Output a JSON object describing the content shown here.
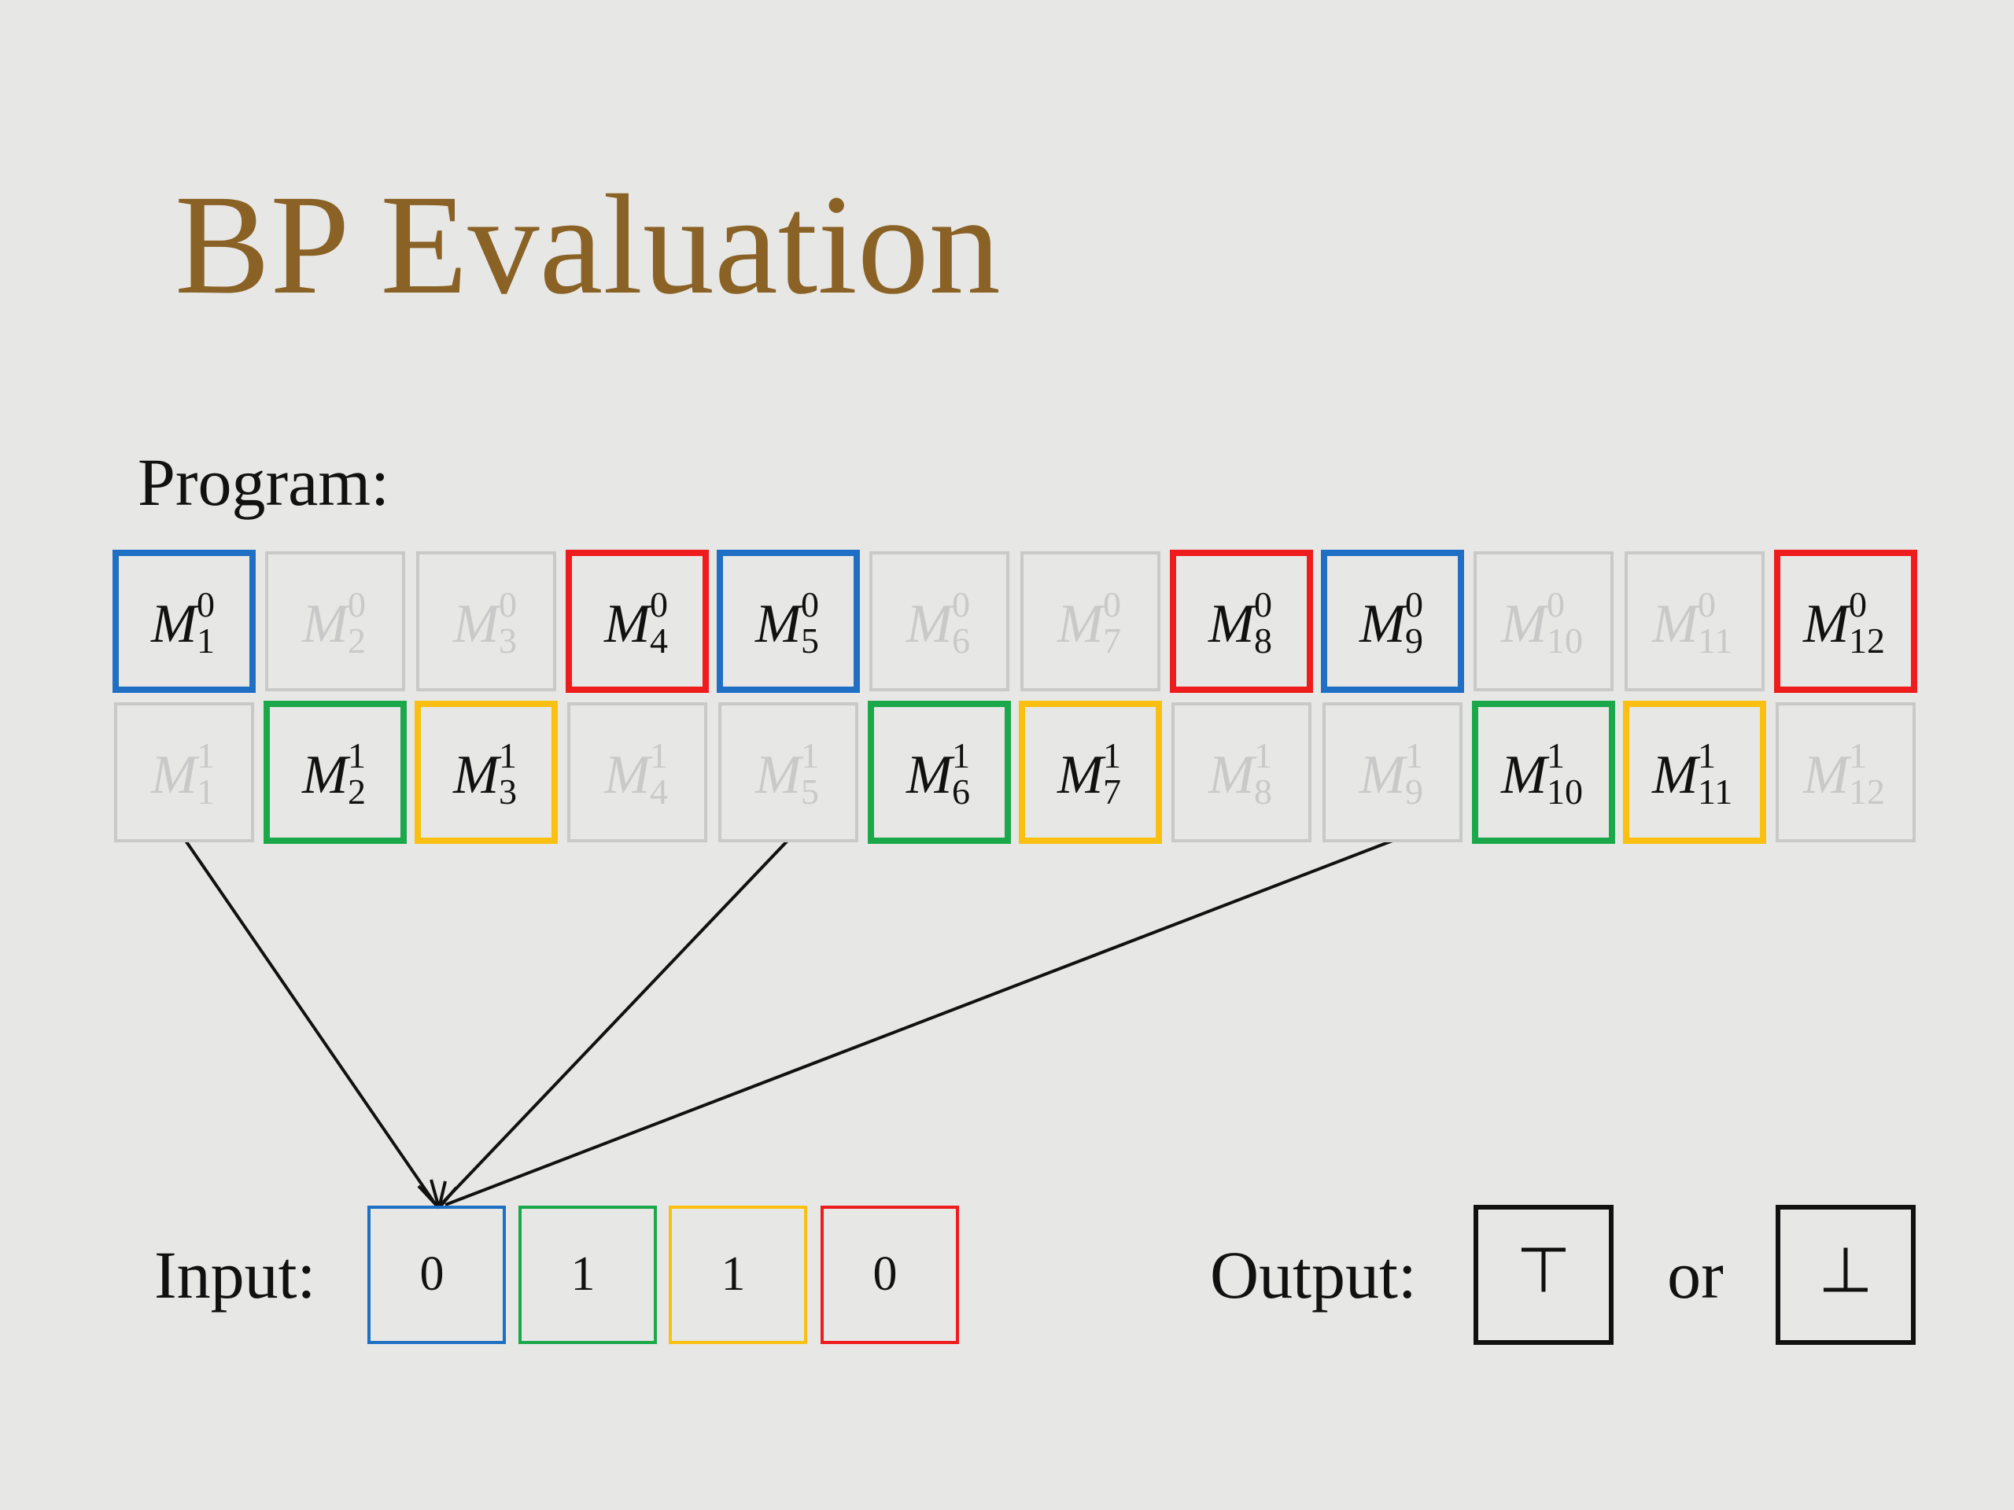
{
  "title": "BP Evaluation",
  "program": {
    "label": "Program:",
    "rows": [
      [
        {
          "symbol": "M",
          "sup": "0",
          "sub": "1",
          "color": "#1f6fc4"
        },
        {
          "symbol": "M",
          "sup": "0",
          "sub": "2",
          "color": null
        },
        {
          "symbol": "M",
          "sup": "0",
          "sub": "3",
          "color": null
        },
        {
          "symbol": "M",
          "sup": "0",
          "sub": "4",
          "color": "#ee1c1c"
        },
        {
          "symbol": "M",
          "sup": "0",
          "sub": "5",
          "color": "#1f6fc4"
        },
        {
          "symbol": "M",
          "sup": "0",
          "sub": "6",
          "color": null
        },
        {
          "symbol": "M",
          "sup": "0",
          "sub": "7",
          "color": null
        },
        {
          "symbol": "M",
          "sup": "0",
          "sub": "8",
          "color": "#ee1c1c"
        },
        {
          "symbol": "M",
          "sup": "0",
          "sub": "9",
          "color": "#1f6fc4"
        },
        {
          "symbol": "M",
          "sup": "0",
          "sub": "10",
          "color": null
        },
        {
          "symbol": "M",
          "sup": "0",
          "sub": "11",
          "color": null
        },
        {
          "symbol": "M",
          "sup": "0",
          "sub": "12",
          "color": "#ee1c1c"
        }
      ],
      [
        {
          "symbol": "M",
          "sup": "1",
          "sub": "1",
          "color": null
        },
        {
          "symbol": "M",
          "sup": "1",
          "sub": "2",
          "color": "#1aa84a"
        },
        {
          "symbol": "M",
          "sup": "1",
          "sub": "3",
          "color": "#f9c011"
        },
        {
          "symbol": "M",
          "sup": "1",
          "sub": "4",
          "color": null
        },
        {
          "symbol": "M",
          "sup": "1",
          "sub": "5",
          "color": null
        },
        {
          "symbol": "M",
          "sup": "1",
          "sub": "6",
          "color": "#1aa84a"
        },
        {
          "symbol": "M",
          "sup": "1",
          "sub": "7",
          "color": "#f9c011"
        },
        {
          "symbol": "M",
          "sup": "1",
          "sub": "8",
          "color": null
        },
        {
          "symbol": "M",
          "sup": "1",
          "sub": "9",
          "color": null
        },
        {
          "symbol": "M",
          "sup": "1",
          "sub": "10",
          "color": "#1aa84a"
        },
        {
          "symbol": "M",
          "sup": "1",
          "sub": "11",
          "color": "#f9c011"
        },
        {
          "symbol": "M",
          "sup": "1",
          "sub": "12",
          "color": null
        }
      ]
    ]
  },
  "input": {
    "label": "Input:",
    "bits": [
      {
        "text": "0",
        "color": "#1f6fc4"
      },
      {
        "text": "1",
        "color": "#1aa84a"
      },
      {
        "text": "1",
        "color": "#f9c011"
      },
      {
        "text": "0",
        "color": "#ee1c1c"
      }
    ]
  },
  "output": {
    "label": "Output:",
    "true_symbol": "⊤",
    "separator": "or",
    "false_symbol": "⊥"
  }
}
